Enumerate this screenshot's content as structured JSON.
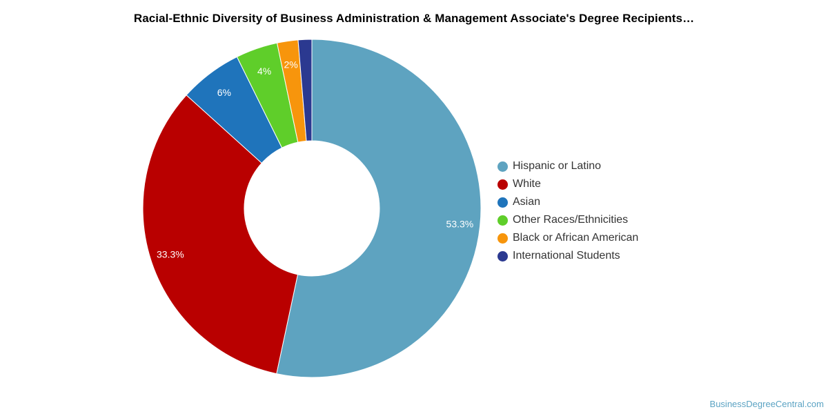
{
  "chart_data": {
    "type": "pie",
    "title": "Racial-Ethnic Diversity of Business Administration & Management Associate's Degree Recipients…",
    "donut": true,
    "legend_position": "right",
    "series": [
      {
        "name": "Hispanic or Latino",
        "value": 53.3,
        "label": "53.3%",
        "color": "#5ea3c0"
      },
      {
        "name": "White",
        "value": 33.3,
        "label": "33.3%",
        "color": "#b90000"
      },
      {
        "name": "Asian",
        "value": 6.0,
        "label": "6%",
        "color": "#1f74bb"
      },
      {
        "name": "Other Races/Ethnicities",
        "value": 4.0,
        "label": "4%",
        "color": "#5fce2a"
      },
      {
        "name": "Black or African American",
        "value": 2.0,
        "label": "2%",
        "color": "#f7950c"
      },
      {
        "name": "International Students",
        "value": 1.3,
        "label": "",
        "color": "#2b3990"
      }
    ]
  },
  "watermark": "BusinessDegreeCentral.com"
}
